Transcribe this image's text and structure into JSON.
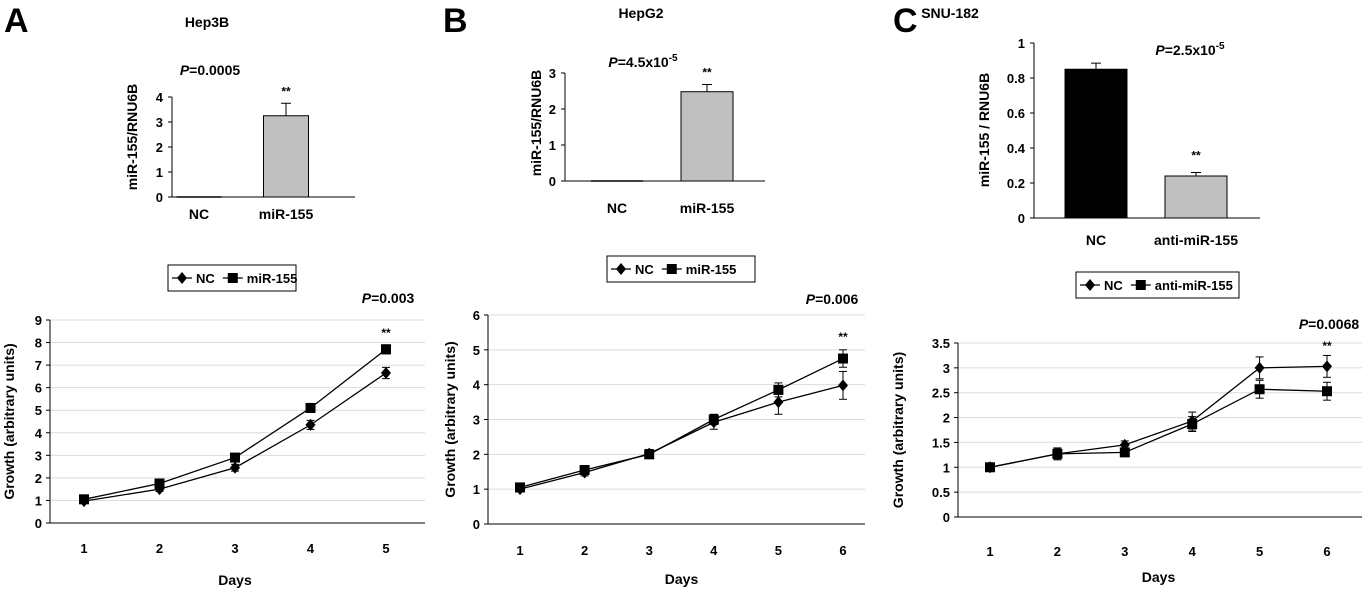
{
  "panels": [
    {
      "letter": "A",
      "cell_line": "Hep3B",
      "bar": {
        "chart_data": {
          "type": "bar",
          "categories": [
            "NC",
            "miR-155"
          ],
          "values": [
            0.0,
            3.25
          ],
          "errors": [
            0,
            0.5
          ],
          "colors": [
            "#000000",
            "#c0c0c0"
          ],
          "ylabel": "miR-155/RNU6B",
          "ylim": [
            0,
            4
          ],
          "yticks": [
            "0",
            "1",
            "2",
            "3",
            "4"
          ],
          "p_label": "P",
          "p_value": "=0.0005",
          "p_exp": "",
          "stars": [
            {
              "index": 1,
              "text": "**"
            }
          ]
        }
      },
      "line": {
        "chart_data": {
          "type": "line",
          "x": [
            1,
            2,
            3,
            4,
            5
          ],
          "series": [
            {
              "name": "NC",
              "marker": "diamond",
              "values": [
                0.97,
                1.5,
                2.45,
                4.35,
                6.65
              ],
              "errors": [
                0.1,
                0.1,
                0.15,
                0.2,
                0.25
              ]
            },
            {
              "name": "miR-155",
              "marker": "square",
              "values": [
                1.05,
                1.75,
                2.9,
                5.1,
                7.7
              ],
              "errors": [
                0.1,
                0.1,
                0.15,
                0.2,
                0.2
              ]
            }
          ],
          "xlabel": "Days",
          "ylabel": "Growth (arbitrary units)",
          "ylim": [
            0,
            9
          ],
          "yticks": [
            "0",
            "1",
            "2",
            "3",
            "4",
            "5",
            "6",
            "7",
            "8",
            "9"
          ],
          "xticks": [
            "1",
            "2",
            "3",
            "4",
            "5"
          ],
          "p_label": "P",
          "p_value": "=0.003",
          "star": "**",
          "star_x": 5,
          "legend": [
            "NC",
            "miR-155"
          ]
        }
      }
    },
    {
      "letter": "B",
      "cell_line": "HepG2",
      "bar": {
        "chart_data": {
          "type": "bar",
          "categories": [
            "NC",
            "miR-155"
          ],
          "values": [
            0.0,
            2.48
          ],
          "errors": [
            0,
            0.2
          ],
          "colors": [
            "#000000",
            "#c0c0c0"
          ],
          "ylabel": "miR-155/RNU6B",
          "ylim": [
            0,
            3
          ],
          "yticks": [
            "0",
            "1",
            "2",
            "3"
          ],
          "p_label": "P",
          "p_value": "=4.5x10",
          "p_exp": "-5",
          "stars": [
            {
              "index": 1,
              "text": "**"
            }
          ]
        }
      },
      "line": {
        "chart_data": {
          "type": "line",
          "x": [
            1,
            2,
            3,
            4,
            5,
            6
          ],
          "series": [
            {
              "name": "NC",
              "marker": "diamond",
              "values": [
                1.0,
                1.48,
                2.02,
                2.92,
                3.5,
                3.98
              ],
              "errors": [
                0.08,
                0.1,
                0.12,
                0.2,
                0.35,
                0.4
              ]
            },
            {
              "name": "miR-155",
              "marker": "square",
              "values": [
                1.05,
                1.55,
                2.0,
                3.0,
                3.85,
                4.75
              ],
              "errors": [
                0.08,
                0.1,
                0.12,
                0.15,
                0.2,
                0.25
              ]
            }
          ],
          "xlabel": "Days",
          "ylabel": "Growth (arbitrary units)",
          "ylim": [
            0,
            6
          ],
          "yticks": [
            "0",
            "1",
            "2",
            "3",
            "4",
            "5",
            "6"
          ],
          "xticks": [
            "1",
            "2",
            "3",
            "4",
            "5",
            "6"
          ],
          "p_label": "P",
          "p_value": "=0.006",
          "star": "**",
          "star_x": 6,
          "legend": [
            "NC",
            "miR-155"
          ]
        }
      }
    },
    {
      "letter": "C",
      "cell_line": "SNU-182",
      "bar": {
        "chart_data": {
          "type": "bar",
          "categories": [
            "NC",
            "anti-miR-155"
          ],
          "values": [
            0.85,
            0.24
          ],
          "errors": [
            0.035,
            0.02
          ],
          "colors": [
            "#000000",
            "#c0c0c0"
          ],
          "ylabel": "miR-155 / RNU6B",
          "ylim": [
            0,
            1
          ],
          "yticks": [
            "0",
            "0.2",
            "0.4",
            "0.6",
            "0.8",
            "1"
          ],
          "p_label": "P",
          "p_value": "=2.5x10",
          "p_exp": "-5",
          "stars": [
            {
              "index": 1,
              "text": "**"
            }
          ]
        }
      },
      "line": {
        "chart_data": {
          "type": "line",
          "x": [
            1,
            2,
            3,
            4,
            5,
            6
          ],
          "series": [
            {
              "name": "NC",
              "marker": "diamond",
              "values": [
                1.0,
                1.27,
                1.45,
                1.93,
                3.0,
                3.03
              ],
              "errors": [
                0.06,
                0.12,
                0.08,
                0.18,
                0.22,
                0.22
              ]
            },
            {
              "name": "anti-miR-155",
              "marker": "square",
              "values": [
                1.0,
                1.27,
                1.3,
                1.87,
                2.57,
                2.53
              ],
              "errors": [
                0.06,
                0.1,
                0.08,
                0.15,
                0.18,
                0.18
              ]
            }
          ],
          "xlabel": "Days",
          "ylabel": "Growth (arbitrary units)",
          "ylim": [
            0,
            3.5
          ],
          "yticks": [
            "0",
            "0.5",
            "1",
            "1.5",
            "2",
            "2.5",
            "3",
            "3.5"
          ],
          "xticks": [
            "1",
            "2",
            "3",
            "4",
            "5",
            "6"
          ],
          "p_label": "P",
          "p_value": "=0.0068",
          "star": "**",
          "star_x": 6,
          "legend": [
            "NC",
            "anti-miR-155"
          ]
        }
      }
    }
  ]
}
